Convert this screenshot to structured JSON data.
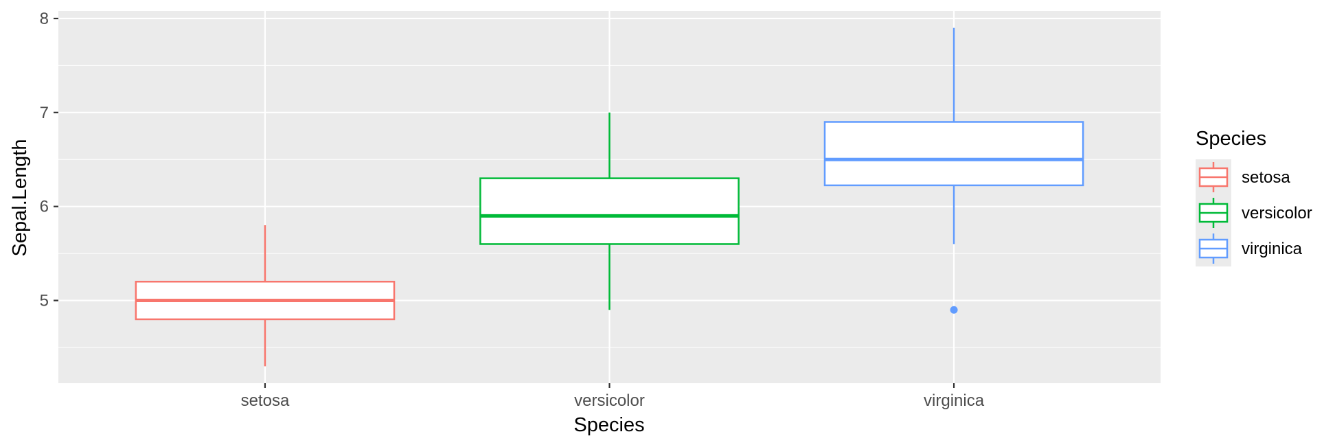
{
  "chart_data": {
    "type": "boxplot",
    "xlabel": "Species",
    "ylabel": "Sepal.Length",
    "ylim": [
      4.12,
      8.08
    ],
    "y_ticks": [
      5,
      6,
      7,
      8
    ],
    "y_minor_ticks": [
      4.5,
      5.5,
      6.5,
      7.5
    ],
    "categories": [
      "setosa",
      "versicolor",
      "virginica"
    ],
    "grid": true,
    "series": [
      {
        "name": "setosa",
        "color": "#F8766D",
        "min": 4.3,
        "q1": 4.8,
        "median": 5.0,
        "q3": 5.2,
        "max": 5.8,
        "outliers": []
      },
      {
        "name": "versicolor",
        "color": "#00BA38",
        "min": 4.9,
        "q1": 5.6,
        "median": 5.9,
        "q3": 6.3,
        "max": 7.0,
        "outliers": []
      },
      {
        "name": "virginica",
        "color": "#619CFF",
        "min": 5.6,
        "q1": 6.225,
        "median": 6.5,
        "q3": 6.9,
        "max": 7.9,
        "outliers": [
          4.9
        ]
      }
    ],
    "legend": {
      "title": "Species",
      "position": "right",
      "entries": [
        "setosa",
        "versicolor",
        "virginica"
      ]
    },
    "panel_background": "#EBEBEB",
    "grid_color": "#FFFFFF"
  }
}
